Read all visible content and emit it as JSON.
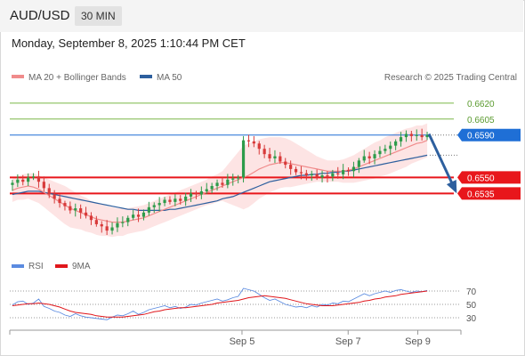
{
  "header": {
    "pair": "AUD/USD",
    "timeframe": "30 MIN"
  },
  "timestamp": "Monday, September 8, 2025 1:10:44 PM CET",
  "legend": {
    "ma20": "MA 20 + Bollinger Bands",
    "ma50": "MA 50",
    "credit": "Research © 2025 Trading Central"
  },
  "rsi_legend": {
    "rsi": "RSI",
    "ma9": "9MA"
  },
  "colors": {
    "support": "#e8161b",
    "resistance": "#7ab648",
    "current": "#1f6fd6",
    "ma50": "#2d5f9e",
    "ma20": "#f08b8b",
    "band": "#fde1e1",
    "up": "#2d9b4a",
    "down": "#d83a3a",
    "rsi": "#5b8be0",
    "rsi_ma": "#e0161b",
    "arrow": "#2d5f9e"
  },
  "chart_data": [
    {
      "type": "candlestick",
      "title": "AUD/USD",
      "ylim": [
        0.6485,
        0.6635
      ],
      "resistance": [
        0.662,
        0.6605
      ],
      "support": [
        0.655,
        0.6535
      ],
      "current": 0.659,
      "price_labels": {
        "r1": "0.6620",
        "r2": "0.6605",
        "current": "0.6590",
        "s1": "0.6550",
        "s2": "0.6535"
      },
      "x_ticks": [
        {
          "label": "Sep 5",
          "i": 32
        },
        {
          "label": "Sep 7",
          "i": 64
        },
        {
          "label": "Sep 9",
          "i": 85
        }
      ],
      "x_range": [
        -38,
        98
      ],
      "closes": [
        0.6545,
        0.6548,
        0.6546,
        0.655,
        0.6551,
        0.6546,
        0.654,
        0.6534,
        0.653,
        0.6526,
        0.6523,
        0.6519,
        0.6521,
        0.6517,
        0.6514,
        0.651,
        0.6506,
        0.6504,
        0.65,
        0.6503,
        0.6507,
        0.6508,
        0.6512,
        0.6515,
        0.6513,
        0.6517,
        0.6522,
        0.6524,
        0.6526,
        0.6529,
        0.6527,
        0.653,
        0.6528,
        0.6532,
        0.6535,
        0.6534,
        0.6537,
        0.6539,
        0.6542,
        0.6545,
        0.6543,
        0.6548,
        0.6549,
        0.655,
        0.6585,
        0.6584,
        0.6582,
        0.6577,
        0.6572,
        0.6568,
        0.657,
        0.6565,
        0.6562,
        0.6558,
        0.6555,
        0.6554,
        0.6552,
        0.6553,
        0.655,
        0.6552,
        0.6551,
        0.6554,
        0.6553,
        0.6557,
        0.6556,
        0.656,
        0.6566,
        0.657,
        0.6568,
        0.6572,
        0.6575,
        0.6577,
        0.658,
        0.6584,
        0.6588,
        0.6591,
        0.6589,
        0.659,
        0.6588,
        0.659
      ],
      "ma20": [
        0.6538,
        0.654,
        0.6541,
        0.6542,
        0.6541,
        0.6539,
        0.6536,
        0.6533,
        0.653,
        0.6527,
        0.6524,
        0.6521,
        0.6519,
        0.6517,
        0.6515,
        0.6513,
        0.6511,
        0.651,
        0.6509,
        0.6508,
        0.6508,
        0.6508,
        0.6509,
        0.651,
        0.6511,
        0.6512,
        0.6514,
        0.6516,
        0.6518,
        0.652,
        0.6522,
        0.6524,
        0.6526,
        0.6528,
        0.653,
        0.6532,
        0.6534,
        0.6536,
        0.6538,
        0.654,
        0.6542,
        0.6544,
        0.6546,
        0.6548,
        0.655,
        0.6552,
        0.6555,
        0.6558,
        0.656,
        0.6562,
        0.6563,
        0.6564,
        0.6564,
        0.6563,
        0.6562,
        0.6561,
        0.656,
        0.6559,
        0.6558,
        0.6557,
        0.6556,
        0.6556,
        0.6556,
        0.6556,
        0.6557,
        0.6558,
        0.656,
        0.6562,
        0.6564,
        0.6566,
        0.6568,
        0.657,
        0.6572,
        0.6574,
        0.6576,
        0.6578,
        0.658,
        0.6582,
        0.6583,
        0.6585
      ],
      "ma50": [
        0.6534,
        0.6535,
        0.6536,
        0.6537,
        0.6537,
        0.6537,
        0.6536,
        0.6535,
        0.6534,
        0.6533,
        0.6532,
        0.6531,
        0.653,
        0.6529,
        0.6528,
        0.6527,
        0.6526,
        0.6525,
        0.6524,
        0.6523,
        0.6522,
        0.6521,
        0.652,
        0.652,
        0.6519,
        0.6519,
        0.6519,
        0.6519,
        0.6519,
        0.6519,
        0.652,
        0.652,
        0.6521,
        0.6522,
        0.6523,
        0.6524,
        0.6525,
        0.6526,
        0.6527,
        0.6528,
        0.653,
        0.6531,
        0.6532,
        0.6534,
        0.6536,
        0.6538,
        0.654,
        0.6542,
        0.6544,
        0.6546,
        0.6547,
        0.6548,
        0.6549,
        0.655,
        0.6551,
        0.6552,
        0.6552,
        0.6553,
        0.6553,
        0.6554,
        0.6554,
        0.6555,
        0.6555,
        0.6556,
        0.6556,
        0.6557,
        0.6558,
        0.6559,
        0.656,
        0.6561,
        0.6562,
        0.6563,
        0.6564,
        0.6565,
        0.6566,
        0.6567,
        0.6568,
        0.6569,
        0.657,
        0.6571
      ],
      "band_width": [
        0.0011,
        0.0011,
        0.0012,
        0.0012,
        0.0013,
        0.0013,
        0.0014,
        0.0015,
        0.0016,
        0.0017,
        0.0018,
        0.0018,
        0.0017,
        0.0016,
        0.0016,
        0.0015,
        0.0015,
        0.0015,
        0.0014,
        0.0014,
        0.0013,
        0.0013,
        0.0012,
        0.0012,
        0.0012,
        0.0012,
        0.0012,
        0.0012,
        0.0012,
        0.0012,
        0.0012,
        0.0012,
        0.0012,
        0.0012,
        0.0012,
        0.0012,
        0.0012,
        0.0012,
        0.0013,
        0.0013,
        0.0014,
        0.0018,
        0.0022,
        0.0026,
        0.003,
        0.003,
        0.0029,
        0.0028,
        0.0027,
        0.0026,
        0.0025,
        0.0024,
        0.0023,
        0.0022,
        0.002,
        0.0018,
        0.0016,
        0.0014,
        0.0012,
        0.0011,
        0.001,
        0.001,
        0.001,
        0.0011,
        0.0012,
        0.0013,
        0.0014,
        0.0015,
        0.0016,
        0.0017,
        0.0017,
        0.0018,
        0.0018,
        0.0018,
        0.0018,
        0.0018,
        0.0017,
        0.0017,
        0.0016,
        0.0016
      ],
      "forecast": {
        "from": 0.6591,
        "to": 0.6534
      }
    },
    {
      "type": "line",
      "title": "RSI",
      "ylim": [
        18,
        82
      ],
      "y_ticks": [
        70,
        50,
        30
      ],
      "rsi": [
        49,
        54,
        55,
        50,
        52,
        58,
        47,
        44,
        40,
        38,
        34,
        32,
        36,
        33,
        31,
        30,
        29,
        28,
        27,
        31,
        34,
        33,
        36,
        40,
        35,
        38,
        42,
        44,
        46,
        48,
        45,
        47,
        44,
        46,
        50,
        49,
        52,
        54,
        56,
        58,
        55,
        57,
        60,
        62,
        74,
        72,
        70,
        65,
        60,
        56,
        58,
        54,
        50,
        48,
        46,
        47,
        45,
        48,
        46,
        50,
        49,
        52,
        51,
        55,
        54,
        58,
        62,
        66,
        63,
        66,
        68,
        70,
        68,
        71,
        72,
        70,
        68,
        70,
        69,
        71
      ],
      "rsi_ma": [
        48,
        49,
        50,
        51,
        51,
        52,
        51,
        50,
        48,
        46,
        43,
        40,
        38,
        37,
        36,
        35,
        33,
        32,
        31,
        31,
        31,
        31,
        32,
        33,
        34,
        35,
        37,
        39,
        40,
        42,
        43,
        44,
        45,
        45,
        46,
        47,
        48,
        49,
        50,
        52,
        53,
        54,
        55,
        56,
        58,
        60,
        61,
        62,
        63,
        62,
        61,
        60,
        59,
        57,
        55,
        53,
        51,
        50,
        49,
        48,
        48,
        48,
        49,
        50,
        51,
        52,
        53,
        55,
        56,
        58,
        59,
        61,
        62,
        63,
        65,
        66,
        67,
        68,
        69,
        70
      ]
    }
  ]
}
